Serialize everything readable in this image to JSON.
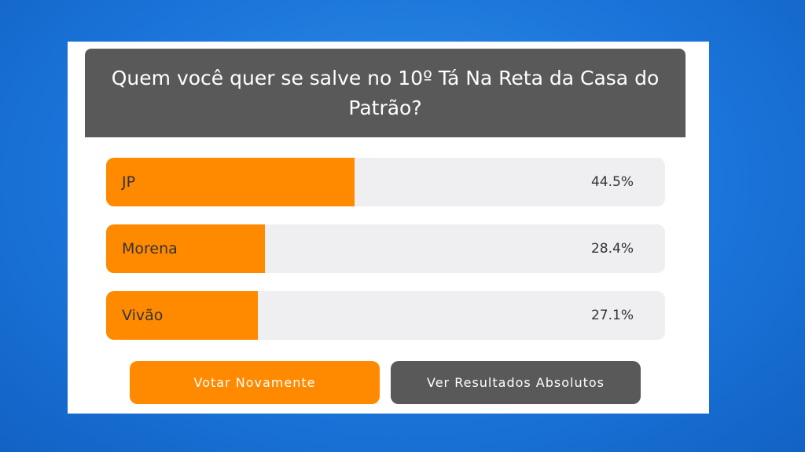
{
  "poll": {
    "title": "Quem você quer se salve no 10º Tá Na Reta da Casa do Patrão?",
    "options": [
      {
        "name": "JP",
        "value": 44.5,
        "value_label": "44.5%"
      },
      {
        "name": "Morena",
        "value": 28.4,
        "value_label": "28.4%"
      },
      {
        "name": "Vivão",
        "value": 27.1,
        "value_label": "27.1%"
      }
    ],
    "buttons": [
      "Votar Novamente",
      "Ver Resultados Absolutos"
    ]
  }
}
